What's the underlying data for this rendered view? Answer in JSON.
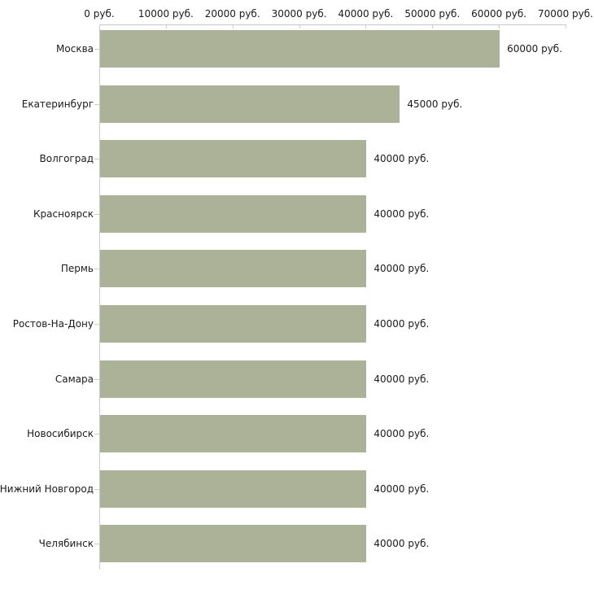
{
  "chart_data": {
    "type": "bar",
    "orientation": "horizontal",
    "title": "",
    "xlabel": "",
    "ylabel": "",
    "unit": "руб.",
    "categories": [
      "Москва",
      "Екатеринбург",
      "Волгоград",
      "Красноярск",
      "Пермь",
      "Ростов-На-Дону",
      "Самара",
      "Новосибирск",
      "Нижний Новгород",
      "Челябинск"
    ],
    "values": [
      60000,
      45000,
      40000,
      40000,
      40000,
      40000,
      40000,
      40000,
      40000,
      40000
    ],
    "value_labels": [
      "60000 руб.",
      "45000 руб.",
      "40000 руб.",
      "40000 руб.",
      "40000 руб.",
      "40000 руб.",
      "40000 руб.",
      "40000 руб.",
      "40000 руб.",
      "40000 руб."
    ],
    "xlim": [
      0,
      70000
    ],
    "x_ticks": [
      0,
      10000,
      20000,
      30000,
      40000,
      50000,
      60000,
      70000
    ],
    "x_tick_labels": [
      "0 руб.",
      "10000 руб.",
      "20000 руб.",
      "30000 руб.",
      "40000 руб.",
      "50000 руб.",
      "60000 руб.",
      "70000 руб."
    ],
    "grid": false,
    "legend": false,
    "axis_position": "top"
  },
  "colors": {
    "bar": "#abb297",
    "axis_line": "#c9c9c9",
    "tick": "#cfcfba",
    "text": "#1a1a1a",
    "background": "#ffffff"
  }
}
